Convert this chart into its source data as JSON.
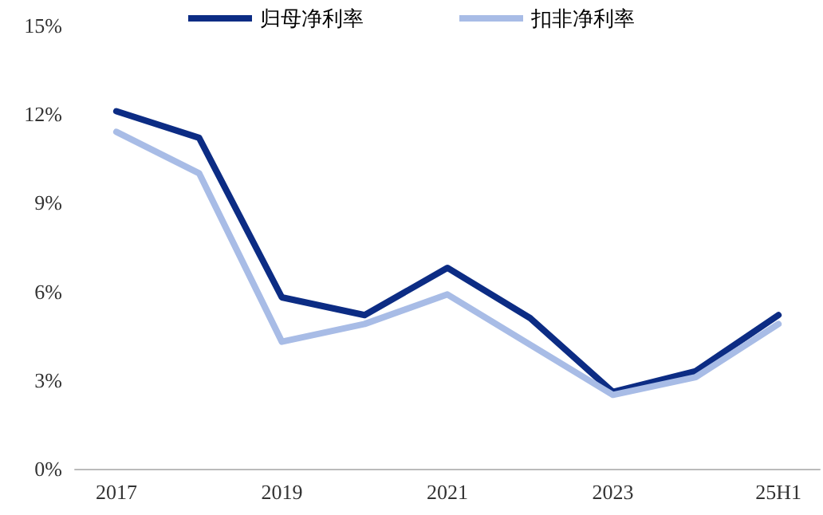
{
  "chart_data": {
    "type": "line",
    "categories": [
      "2017",
      null,
      "2019",
      null,
      "2021",
      null,
      "2023",
      null,
      "25H1"
    ],
    "series": [
      {
        "name": "归母净利率",
        "color": "#0c2c84",
        "values": [
          12.1,
          11.2,
          5.8,
          5.2,
          6.8,
          5.1,
          2.6,
          3.3,
          5.2
        ]
      },
      {
        "name": "扣非净利率",
        "color": "#a8bce6",
        "values": [
          11.4,
          10.0,
          4.3,
          4.9,
          5.9,
          4.2,
          2.5,
          3.1,
          4.9
        ]
      }
    ],
    "ylim": [
      0,
      15
    ],
    "yticks": [
      {
        "value": 0,
        "label": "0%"
      },
      {
        "value": 3,
        "label": "3%"
      },
      {
        "value": 6,
        "label": "6%"
      },
      {
        "value": 9,
        "label": "9%"
      },
      {
        "value": 12,
        "label": "12%"
      },
      {
        "value": 15,
        "label": "15%"
      }
    ],
    "grid": false,
    "legend": "top",
    "marker": "none",
    "line_style": "solid"
  }
}
